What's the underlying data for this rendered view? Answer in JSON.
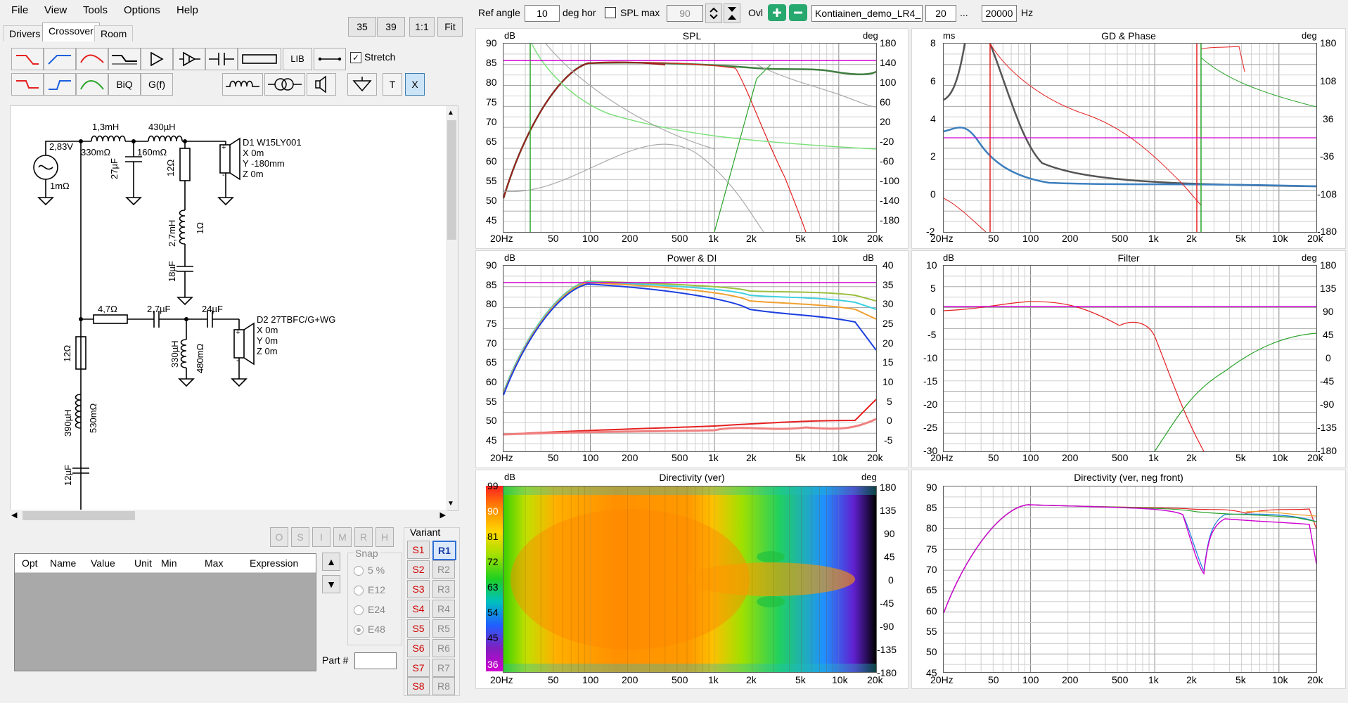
{
  "menu": [
    "File",
    "View",
    "Tools",
    "Options",
    "Help"
  ],
  "tabs": [
    "Drivers",
    "Crossover",
    "Room"
  ],
  "active_tab": "Crossover",
  "view_buttons": [
    "35",
    "39",
    "1:1",
    "Fit"
  ],
  "toolbox": {
    "lib_label": "LIB",
    "biq_label": "BiQ",
    "gf_label": "G(f)",
    "t_label": "T",
    "x_label": "X",
    "stretch_label": "Stretch",
    "stretch_checked": true
  },
  "top_toolbar": {
    "ref_angle_label": "Ref angle",
    "ref_angle_value": "10",
    "deg_hor_label": "deg hor",
    "spl_max_label": "SPL max",
    "spl_max_checked": false,
    "spl_max_value": "90",
    "ovl_label": "Ovl",
    "project_name": "Kontiainen_demo_LR4_",
    "freq_min": "20",
    "freq_ellipsis": "...",
    "freq_max": "20000",
    "freq_unit": "Hz"
  },
  "schematic": {
    "source_voltage": "2,83V",
    "source_resistance": "1mΩ",
    "l1": "1,3mH",
    "l1_r": "330mΩ",
    "l2": "430µH",
    "l2_r": "160mΩ",
    "c1": "27µF",
    "r1": "12Ω",
    "l3": "2,7mH",
    "l3_r": "1Ω",
    "c2": "18µF",
    "d1_name": "D1 W15LY001",
    "d1_x": "X 0m",
    "d1_y": "Y -180mm",
    "d1_z": "Z 0m",
    "r2": "4,7Ω",
    "c3": "2,7µF",
    "c4": "24µF",
    "l4": "330µH",
    "l4_r": "480mΩ",
    "d2_name": "D2 27TBFC/G+WG",
    "d2_x": "X 0m",
    "d2_y": "Y 0m",
    "d2_z": "Z 0m",
    "r3": "12Ω",
    "l5": "390µH",
    "l5_r": "530mΩ",
    "c5": "12µF",
    "plus": "+",
    "minus": "-"
  },
  "optimizer_buttons": [
    "O",
    "S",
    "I",
    "M",
    "R",
    "H"
  ],
  "param_table": {
    "columns": [
      "Opt",
      "Name",
      "Value",
      "Unit",
      "Min",
      "Max",
      "Expression"
    ]
  },
  "snap": {
    "label": "Snap",
    "options": [
      "5 %",
      "E12",
      "E24",
      "E48"
    ],
    "selected": "E48"
  },
  "part_label": "Part #",
  "variant": {
    "label": "Variant",
    "s_buttons": [
      "S1",
      "S2",
      "S3",
      "S4",
      "S5",
      "S6",
      "S7",
      "S8"
    ],
    "r_buttons": [
      "R1",
      "R2",
      "R3",
      "R4",
      "R5",
      "R6",
      "R7",
      "R8"
    ],
    "selected": "R1"
  },
  "graphs": {
    "spl": {
      "title": "SPL",
      "left_unit": "dB",
      "right_unit": "deg",
      "left_ticks": [
        "90",
        "85",
        "80",
        "75",
        "70",
        "65",
        "60",
        "55",
        "50",
        "45"
      ],
      "right_ticks": [
        "180",
        "140",
        "100",
        "60",
        "20",
        "-20",
        "-60",
        "-100",
        "-140",
        "-180"
      ],
      "x_ticks": [
        "20Hz",
        "50",
        "100",
        "200",
        "500",
        "1k",
        "2k",
        "5k",
        "10k",
        "20k"
      ]
    },
    "gd": {
      "title": "GD & Phase",
      "left_unit": "ms",
      "right_unit": "deg",
      "left_ticks": [
        "8",
        "6",
        "4",
        "2",
        "0",
        "-2"
      ],
      "right_ticks": [
        "180",
        "108",
        "36",
        "-36",
        "-108",
        "-180"
      ],
      "x_ticks": [
        "20Hz",
        "50",
        "100",
        "200",
        "500",
        "1k",
        "2k",
        "5k",
        "10k",
        "20k"
      ]
    },
    "power": {
      "title": "Power & DI",
      "left_unit": "dB",
      "right_unit": "dB",
      "left_ticks": [
        "90",
        "85",
        "80",
        "75",
        "70",
        "65",
        "60",
        "55",
        "50",
        "45"
      ],
      "right_ticks": [
        "40",
        "35",
        "30",
        "25",
        "20",
        "15",
        "10",
        "5",
        "0",
        "-5"
      ],
      "x_ticks": [
        "20Hz",
        "50",
        "100",
        "200",
        "500",
        "1k",
        "2k",
        "5k",
        "10k",
        "20k"
      ]
    },
    "filter": {
      "title": "Filter",
      "left_unit": "dB",
      "right_unit": "deg",
      "left_ticks": [
        "10",
        "5",
        "0",
        "-5",
        "-10",
        "-15",
        "-20",
        "-25",
        "-30"
      ],
      "right_ticks": [
        "180",
        "135",
        "90",
        "45",
        "0",
        "-45",
        "-90",
        "-135",
        "-180"
      ],
      "x_ticks": [
        "20Hz",
        "50",
        "100",
        "200",
        "500",
        "1k",
        "2k",
        "5k",
        "10k",
        "20k"
      ]
    },
    "directivity": {
      "title": "Directivity (ver)",
      "left_unit": "dB",
      "right_unit": "deg",
      "left_ticks": [
        "99",
        "90",
        "81",
        "72",
        "63",
        "54",
        "45",
        "36"
      ],
      "right_ticks": [
        "180",
        "135",
        "90",
        "45",
        "0",
        "-45",
        "-90",
        "-135",
        "-180"
      ],
      "x_ticks": [
        "20Hz",
        "50",
        "100",
        "200",
        "500",
        "1k",
        "2k",
        "5k",
        "10k",
        "20k"
      ]
    },
    "directivity_neg": {
      "title": "Directivity (ver, neg front)",
      "left_ticks": [
        "90",
        "85",
        "80",
        "75",
        "70",
        "65",
        "60",
        "55",
        "50",
        "45"
      ],
      "x_ticks": [
        "20Hz",
        "50",
        "100",
        "200",
        "500",
        "1k",
        "2k",
        "5k",
        "10k",
        "20k"
      ]
    }
  },
  "colors": {
    "red": "#e52020",
    "blue": "#1c3fe0",
    "green": "#2aa42a",
    "magenta": "#d000d0",
    "selected_blue": "#2e6fd8"
  }
}
